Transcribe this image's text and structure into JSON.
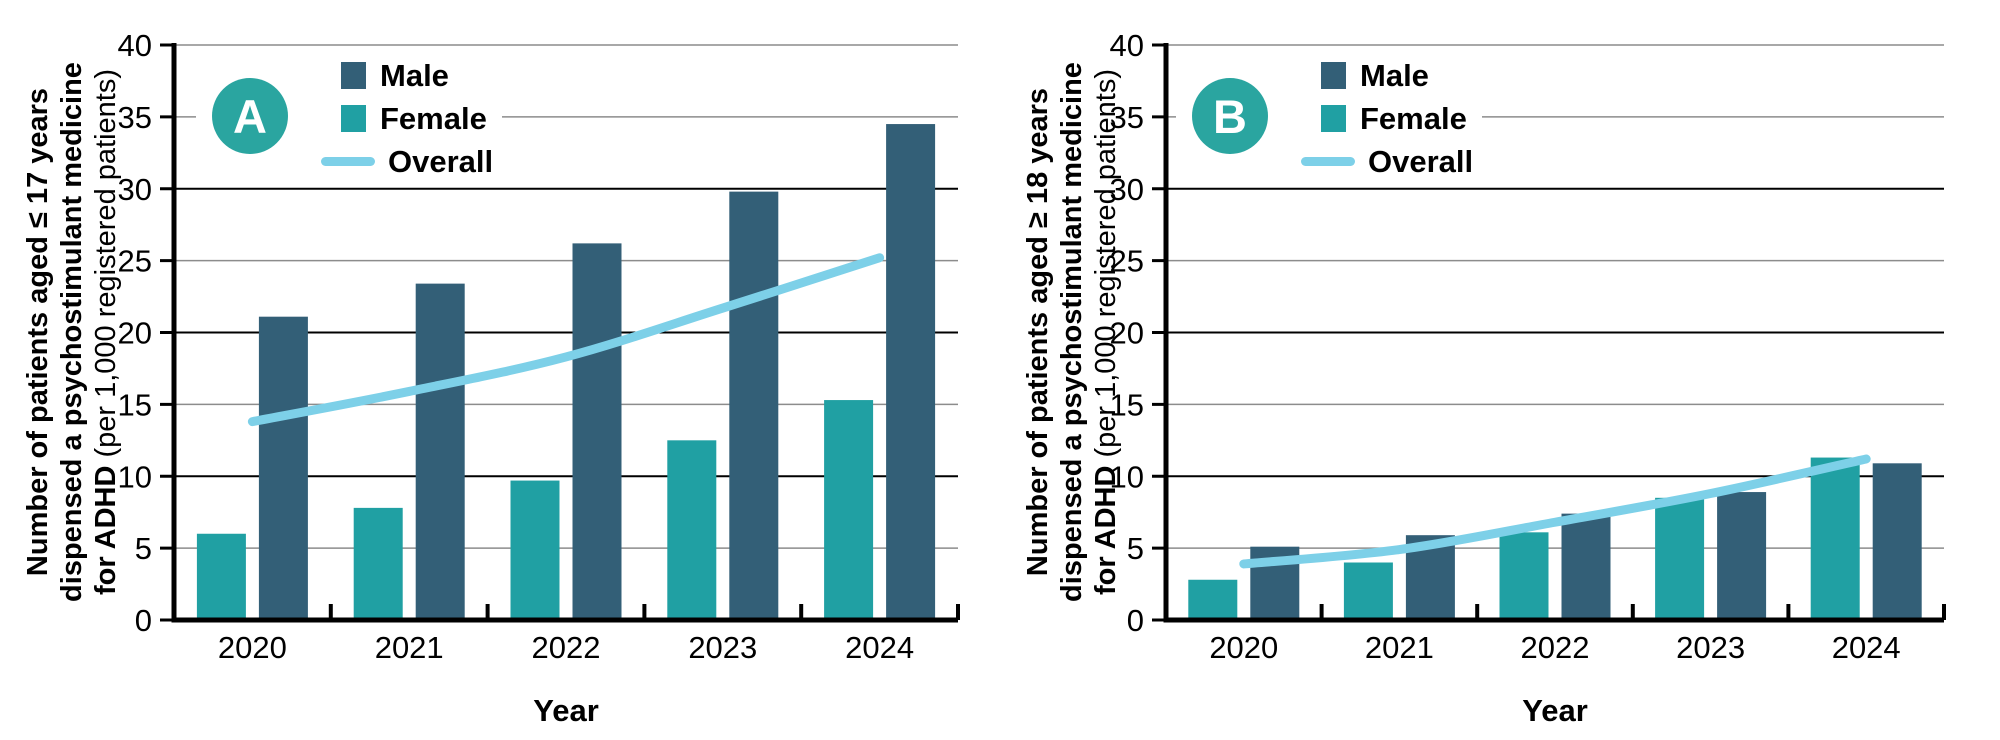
{
  "colors": {
    "male": "#335f77",
    "female": "#20a0a3",
    "overall": "#7dd0e8",
    "badge": "#2aa5a0",
    "grid_major": "#000000",
    "grid_minor": "#8c8c8c",
    "axis": "#000000",
    "text": "#000000",
    "legend_background": "#ffffff"
  },
  "panels": [
    {
      "badge": "A",
      "y_title_line1": "Number of patients aged ≤ 17 years",
      "y_title_line2": "dispensed a psychostimulant medicine",
      "y_title_line3_bold": "for ADHD",
      "y_title_line3_regular": " (per 1,000 registered patients)"
    },
    {
      "badge": "B",
      "y_title_line1": "Number of patients aged ≥ 18 years",
      "y_title_line2": "dispensed a psychostimulant medicine",
      "y_title_line3_bold": "for ADHD",
      "y_title_line3_regular": " (per 1,000 registered patients)"
    }
  ],
  "chart_data": [
    {
      "type": "bar",
      "subtype": "grouped-bars-with-line-overlay",
      "title": "",
      "categories": [
        "2020",
        "2021",
        "2022",
        "2023",
        "2024"
      ],
      "series": [
        {
          "name": "Male",
          "type": "bar",
          "values": [
            21.1,
            23.4,
            26.2,
            29.8,
            34.5
          ]
        },
        {
          "name": "Female",
          "type": "bar",
          "values": [
            6.0,
            7.8,
            9.7,
            12.5,
            15.3
          ]
        },
        {
          "name": "Overall",
          "type": "line",
          "values": [
            13.8,
            15.9,
            18.3,
            21.7,
            25.2
          ]
        }
      ],
      "bar_order": [
        "Female",
        "Male"
      ],
      "xlabel": "Year",
      "ylabel": "Number of patients aged ≤ 17 years dispensed a psychostimulant medicine for ADHD (per 1,000 registered patients)",
      "ylim": [
        0,
        40
      ],
      "y_ticks": [
        0,
        5,
        10,
        15,
        20,
        25,
        30,
        35,
        40
      ],
      "grid": "horizontal",
      "legend_position": "top-inside"
    },
    {
      "type": "bar",
      "subtype": "grouped-bars-with-line-overlay",
      "title": "",
      "categories": [
        "2020",
        "2021",
        "2022",
        "2023",
        "2024"
      ],
      "series": [
        {
          "name": "Male",
          "type": "bar",
          "values": [
            5.1,
            5.9,
            7.4,
            8.9,
            10.9
          ]
        },
        {
          "name": "Female",
          "type": "bar",
          "values": [
            2.8,
            4.0,
            6.1,
            8.5,
            11.3
          ]
        },
        {
          "name": "Overall",
          "type": "line",
          "values": [
            3.9,
            4.9,
            6.8,
            8.8,
            11.2
          ]
        }
      ],
      "bar_order": [
        "Female",
        "Male"
      ],
      "xlabel": "Year",
      "ylabel": "Number of patients aged ≥ 18 years dispensed a psychostimulant medicine for ADHD (per 1,000 registered patients)",
      "ylim": [
        0,
        40
      ],
      "y_ticks": [
        0,
        5,
        10,
        15,
        20,
        25,
        30,
        35,
        40
      ],
      "grid": "horizontal",
      "legend_position": "top-inside"
    }
  ]
}
